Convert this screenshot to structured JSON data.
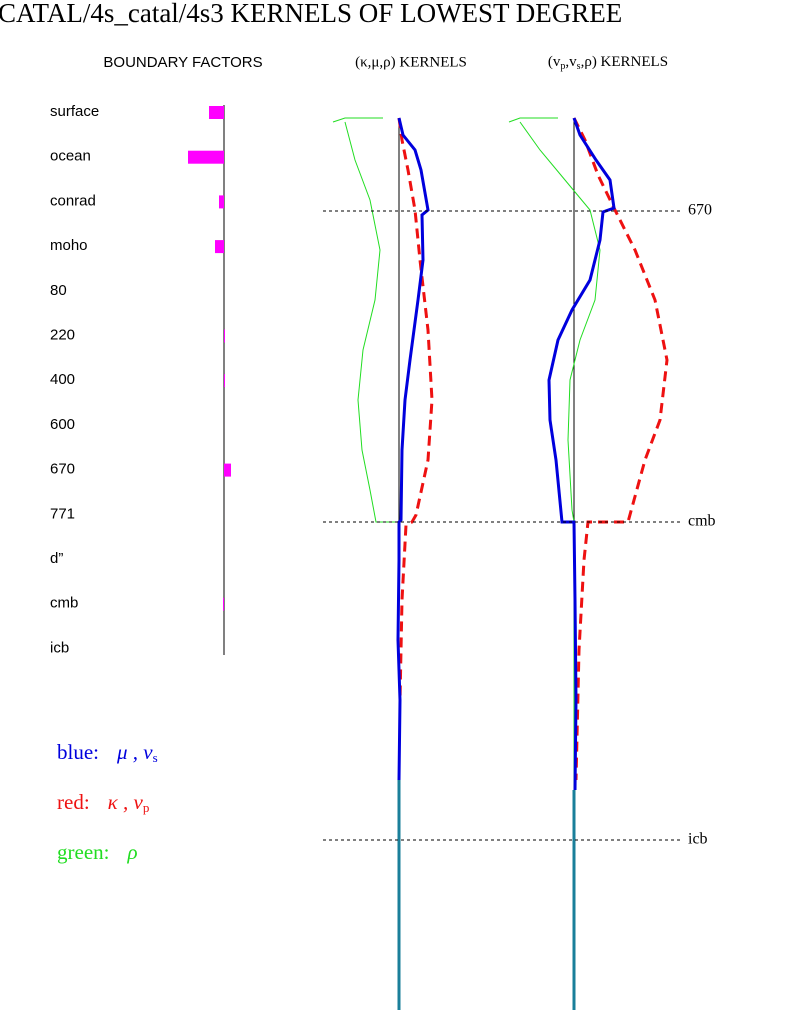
{
  "header": {
    "title": "CATAL/4s_catal/4s3 KERNELS OF LOWEST DEGREE",
    "boundary_title": "BOUNDARY FACTORS",
    "panel1": [
      "(κ,μ,ρ)  KERNELS"
    ],
    "panel2": [
      "(v",
      "p",
      ",v",
      "s",
      ",ρ)  KERNELS"
    ]
  },
  "boundary_factors": {
    "labels": [
      "surface",
      "ocean",
      "conrad",
      "moho",
      "80",
      "220",
      "400",
      "600",
      "670",
      "771",
      "d”",
      "cmb",
      "icb"
    ],
    "values": [
      -15,
      -36,
      -5,
      -9,
      0,
      1,
      1,
      0,
      7,
      0,
      0,
      -1,
      0
    ]
  },
  "depth_lines": [
    "670",
    "cmb",
    "icb"
  ],
  "legend": [
    {
      "label": "blue:",
      "symbols": "μ , v",
      "sub": "s",
      "color": "#0000dd"
    },
    {
      "label": "red:",
      "symbols": "κ , v",
      "sub": "p",
      "color": "#ee1111"
    },
    {
      "label": "green:",
      "symbols": "ρ",
      "sub": null,
      "color": "#22dd22"
    }
  ]
}
